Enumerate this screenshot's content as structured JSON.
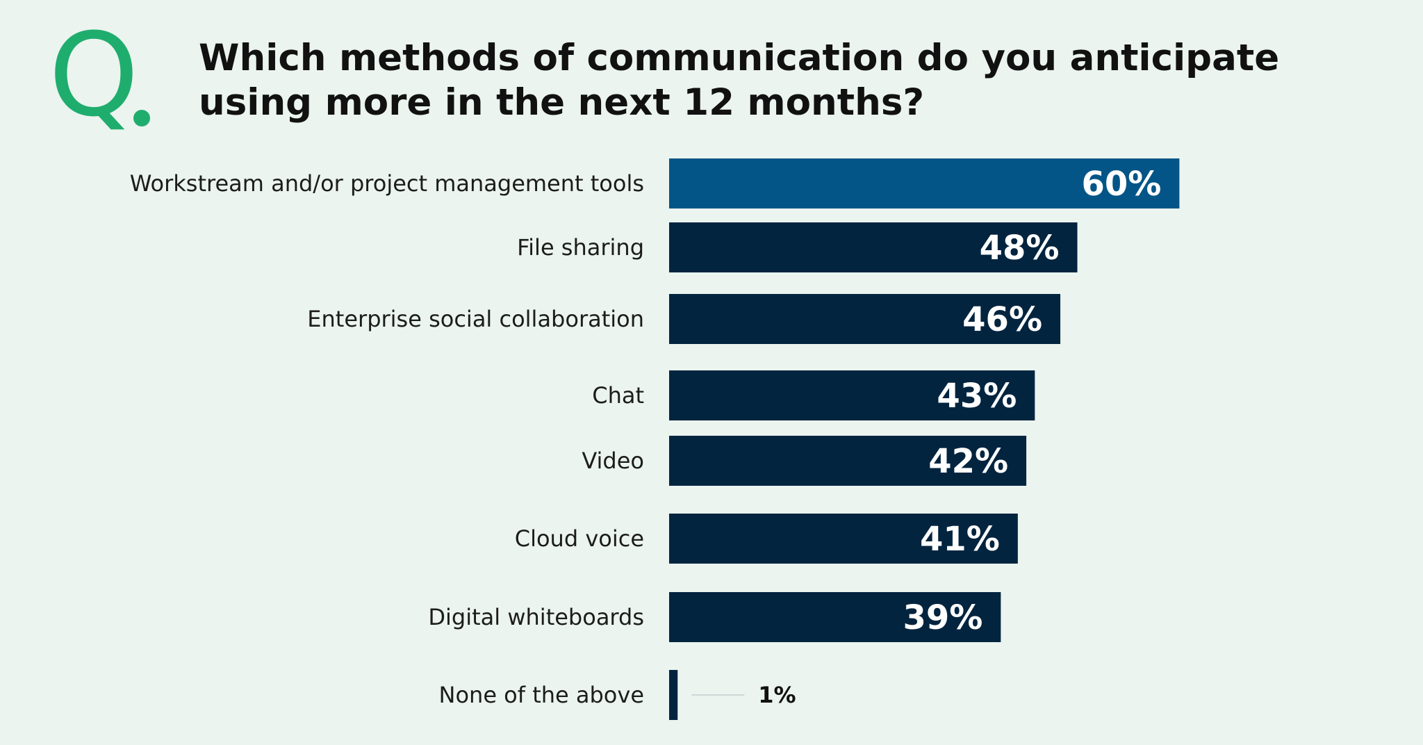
{
  "logo": {
    "letter": "Q",
    "color": "#1fad6e"
  },
  "question": "Which methods of communication do you anticipate using more in the next 12 months?",
  "chart_data": {
    "type": "bar",
    "orientation": "horizontal",
    "categories": [
      "Workstream and/or project management tools",
      "File sharing",
      "Enterprise social collaboration",
      "Chat",
      "Video",
      "Cloud voice",
      "Digital whiteboards",
      "None of the above"
    ],
    "values": [
      60,
      48,
      46,
      43,
      42,
      41,
      39,
      1
    ],
    "value_labels": [
      "60%",
      "48%",
      "46%",
      "43%",
      "42%",
      "41%",
      "39%",
      "1%"
    ],
    "unit": "%",
    "title": "",
    "xlabel": "",
    "ylabel": "",
    "xlim": [
      0,
      100
    ],
    "grid": false,
    "legend": "none",
    "colors": {
      "highlight": "#045587",
      "default": "#02243f",
      "leader_line": "#cfd8d6"
    },
    "highlight_index": 0
  }
}
